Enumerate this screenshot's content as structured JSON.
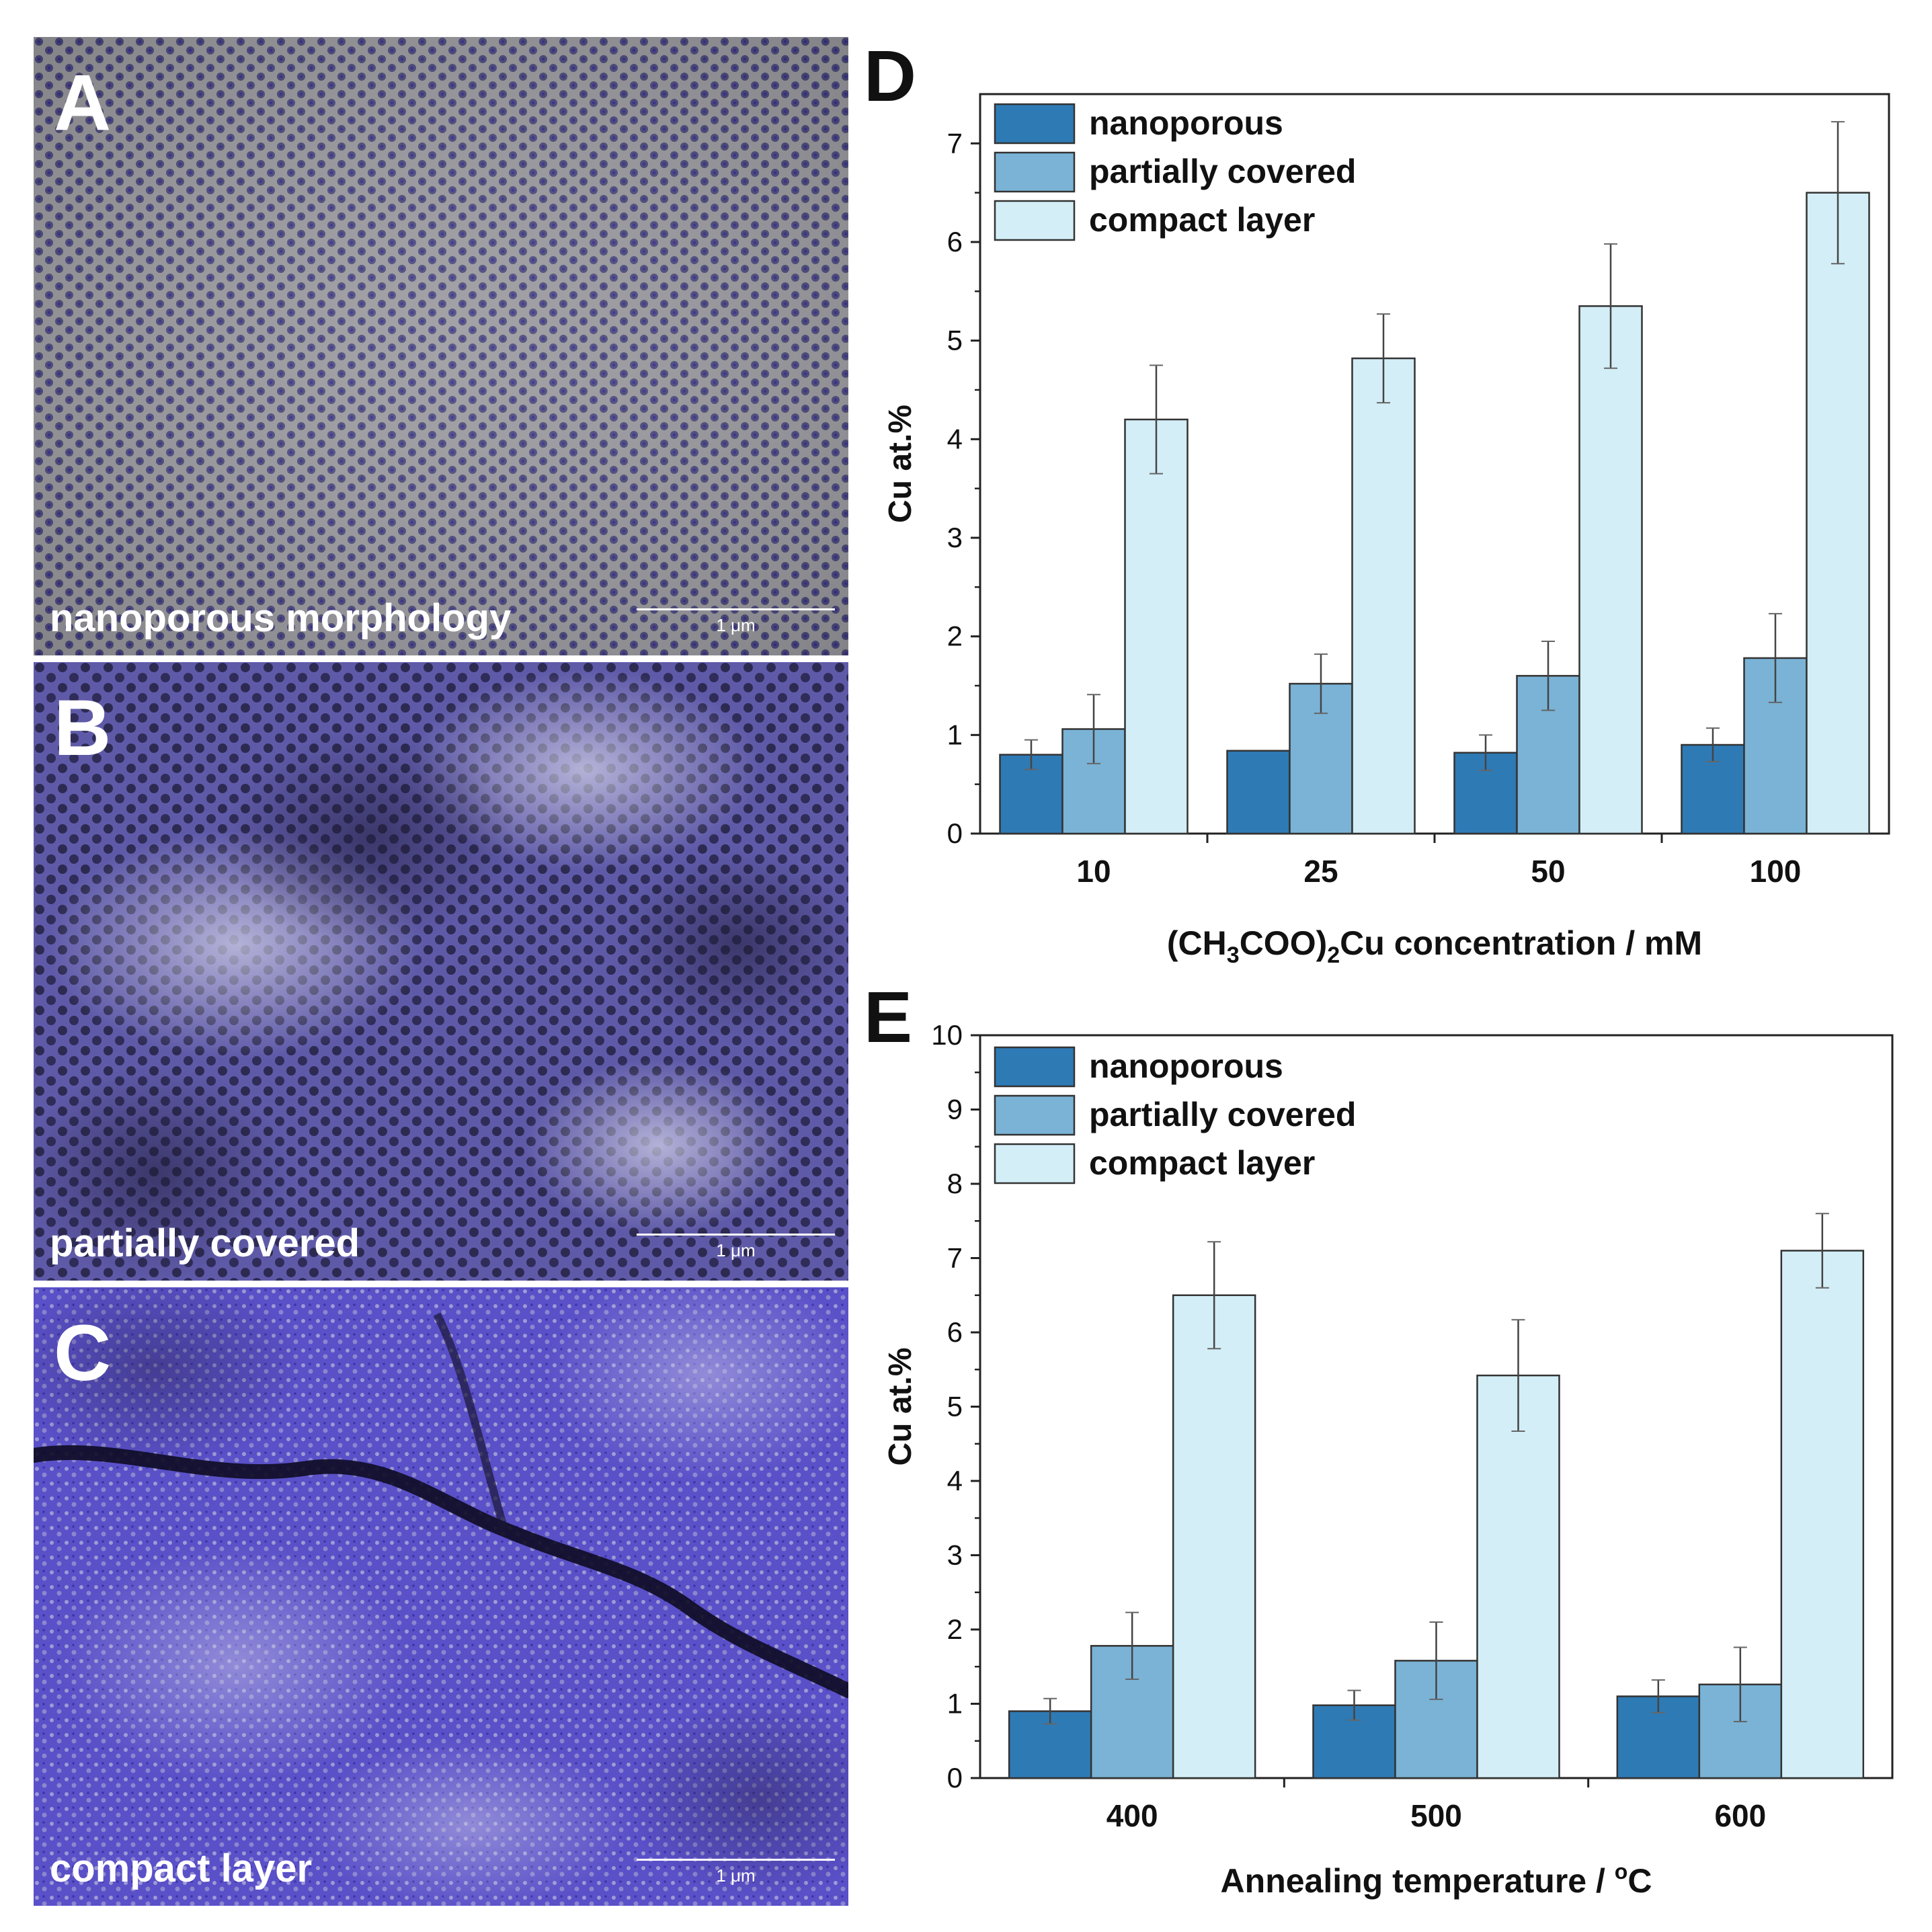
{
  "panels": [
    {
      "letter": "A",
      "caption": "nanoporous morphology",
      "scale_label": "1 μm"
    },
    {
      "letter": "B",
      "caption": "partially covered",
      "scale_label": "1 μm"
    },
    {
      "letter": "C",
      "caption": "compact layer",
      "scale_label": "1 μm"
    }
  ],
  "colors": {
    "nanoporous": "#2e7ab5",
    "partially_covered": "#7ab3d6",
    "compact_layer": "#d3eef6",
    "sem_tint": "#4a3fd4"
  },
  "chart_data": [
    {
      "panel_letter": "D",
      "type": "bar",
      "categories": [
        "10",
        "25",
        "50",
        "100"
      ],
      "series": [
        {
          "name": "nanoporous",
          "values": [
            0.8,
            0.84,
            0.82,
            0.9
          ],
          "errors": [
            0.15,
            0.0,
            0.18,
            0.17
          ]
        },
        {
          "name": "partially covered",
          "values": [
            1.06,
            1.52,
            1.6,
            1.78
          ],
          "errors": [
            0.35,
            0.3,
            0.35,
            0.45
          ]
        },
        {
          "name": "compact layer",
          "values": [
            4.2,
            4.82,
            5.35,
            6.5
          ],
          "errors": [
            0.55,
            0.45,
            0.63,
            0.72
          ]
        }
      ],
      "ylabel": "Cu at.%",
      "xlabel_main": "(CH",
      "xlabel_sub1": "3",
      "xlabel_mid": "COO)",
      "xlabel_sub2": "2",
      "xlabel_end": "Cu concentration / mM",
      "ylim": [
        0,
        7.5
      ],
      "yticks": [
        "0",
        "1",
        "2",
        "3",
        "4",
        "5",
        "6",
        "7"
      ],
      "legend": "top-left"
    },
    {
      "panel_letter": "E",
      "type": "bar",
      "categories": [
        "400",
        "500",
        "600"
      ],
      "series": [
        {
          "name": "nanoporous",
          "values": [
            0.9,
            0.98,
            1.1
          ],
          "errors": [
            0.17,
            0.2,
            0.22
          ]
        },
        {
          "name": "partially covered",
          "values": [
            1.78,
            1.58,
            1.26
          ],
          "errors": [
            0.45,
            0.52,
            0.5
          ]
        },
        {
          "name": "compact layer",
          "values": [
            6.5,
            5.42,
            7.1
          ],
          "errors": [
            0.72,
            0.75,
            0.5
          ]
        }
      ],
      "ylabel": "Cu at.%",
      "xlabel_main": "Annealing temperature / ",
      "xlabel_sup": "o",
      "xlabel_end": "C",
      "ylim": [
        0,
        10
      ],
      "yticks": [
        "0",
        "1",
        "2",
        "3",
        "4",
        "5",
        "6",
        "7",
        "8",
        "9",
        "10"
      ],
      "legend": "top-left"
    }
  ]
}
